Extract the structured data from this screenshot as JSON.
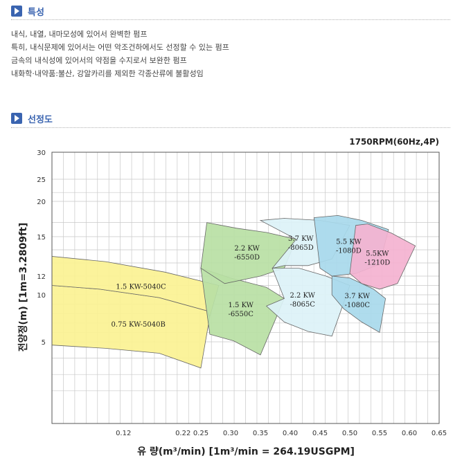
{
  "sections": {
    "features_title": "특성",
    "chart_title": "선정도"
  },
  "features": [
    "내식, 내열, 내마모성에 있어서 완벽한 펌프",
    "특히, 내식문제에 있어서는 어떤 악조건하에서도 선정할 수 있는 펌프",
    "금속의 내식성에 있어서의 약점을 수지로서 보완한 펌프",
    "내화학·내약품:불산, 강알카리를 제외한 각종산류에 불활성임"
  ],
  "colors": {
    "yellow": "#fbf293",
    "green": "#b9dfa4",
    "light_cyan": "#dcf2f7",
    "blue": "#a8d9ec",
    "pink": "#f4b2d0",
    "accent": "#3a64b0"
  },
  "chart_data": {
    "type": "area",
    "title": "1750RPM(60Hz,4P)",
    "xlabel": "유 량(m³/min) [1m³/min = 264.19USGPM]",
    "ylabel": "전양정(m) [1m=3.2809ft]",
    "xlim": [
      0.0,
      0.65
    ],
    "ylim": [
      0,
      30
    ],
    "x_ticks": [
      "0.12",
      "0.22",
      "0.25",
      "0.30",
      "0.35",
      "0.40",
      "0.45",
      "0.50",
      "0.55",
      "0.60",
      "0.65"
    ],
    "y_ticks": [
      "5",
      "10",
      "12",
      "15",
      "20",
      "25",
      "30"
    ],
    "grid": true,
    "regions": [
      {
        "label_lines": [
          "0.75 KW-5040B"
        ],
        "color": "yellow",
        "polygon": [
          [
            0.0,
            4.8
          ],
          [
            0.0,
            11.0
          ],
          [
            0.08,
            10.6
          ],
          [
            0.18,
            9.7
          ],
          [
            0.26,
            8.3
          ],
          [
            0.265,
            7.7
          ],
          [
            0.25,
            3.4
          ],
          [
            0.18,
            4.3
          ],
          [
            0.09,
            4.6
          ]
        ]
      },
      {
        "label_lines": [
          "1.5 KW-5040C"
        ],
        "color": "yellow",
        "polygon": [
          [
            0.0,
            11.0
          ],
          [
            0.0,
            13.5
          ],
          [
            0.09,
            13.1
          ],
          [
            0.19,
            12.3
          ],
          [
            0.28,
            11.0
          ],
          [
            0.265,
            7.7
          ],
          [
            0.26,
            8.3
          ],
          [
            0.18,
            9.7
          ],
          [
            0.08,
            10.6
          ]
        ]
      },
      {
        "label_lines": [
          "1.5 KW",
          "-6550C"
        ],
        "color": "green",
        "polygon": [
          [
            0.25,
            12.6
          ],
          [
            0.3,
            11.8
          ],
          [
            0.36,
            10.8
          ],
          [
            0.39,
            9.6
          ],
          [
            0.35,
            4.2
          ],
          [
            0.305,
            5.1
          ],
          [
            0.265,
            5.8
          ]
        ]
      },
      {
        "label_lines": [
          "2.2 KW",
          "-6550D"
        ],
        "color": "green",
        "polygon": [
          [
            0.26,
            17.0
          ],
          [
            0.31,
            16.2
          ],
          [
            0.36,
            15.6
          ],
          [
            0.41,
            14.8
          ],
          [
            0.39,
            12.6
          ],
          [
            0.35,
            12.0
          ],
          [
            0.29,
            11.2
          ],
          [
            0.25,
            12.6
          ]
        ]
      },
      {
        "label_lines": [
          "2.2 KW",
          "-8065C"
        ],
        "color": "light_cyan",
        "polygon": [
          [
            0.37,
            12.6
          ],
          [
            0.415,
            12.6
          ],
          [
            0.46,
            12.0
          ],
          [
            0.5,
            11.0
          ],
          [
            0.47,
            5.6
          ],
          [
            0.43,
            6.1
          ],
          [
            0.39,
            7.1
          ],
          [
            0.36,
            8.8
          ],
          [
            0.39,
            9.6
          ]
        ]
      },
      {
        "label_lines": [
          "3.7 KW",
          "-8065D"
        ],
        "color": "light_cyan",
        "polygon": [
          [
            0.35,
            17.3
          ],
          [
            0.39,
            17.6
          ],
          [
            0.45,
            17.3
          ],
          [
            0.5,
            16.6
          ],
          [
            0.47,
            13.3
          ],
          [
            0.43,
            12.8
          ],
          [
            0.39,
            12.8
          ],
          [
            0.37,
            12.6
          ],
          [
            0.41,
            14.8
          ]
        ]
      },
      {
        "label_lines": [
          "3.7 KW",
          "-1080C"
        ],
        "color": "blue",
        "polygon": [
          [
            0.47,
            12.0
          ],
          [
            0.5,
            11.8
          ],
          [
            0.54,
            10.6
          ],
          [
            0.56,
            9.6
          ],
          [
            0.55,
            6.0
          ],
          [
            0.52,
            7.1
          ],
          [
            0.49,
            8.5
          ],
          [
            0.47,
            10.0
          ]
        ]
      },
      {
        "label_lines": [
          "5.5 KW",
          "-1080D"
        ],
        "color": "blue",
        "polygon": [
          [
            0.44,
            17.7
          ],
          [
            0.48,
            18.0
          ],
          [
            0.52,
            17.3
          ],
          [
            0.565,
            16.0
          ],
          [
            0.55,
            12.9
          ],
          [
            0.51,
            12.2
          ],
          [
            0.47,
            12.0
          ],
          [
            0.45,
            12.6
          ]
        ]
      },
      {
        "label_lines": [
          "5.5KW",
          "-1210D"
        ],
        "color": "pink",
        "polygon": [
          [
            0.51,
            16.6
          ],
          [
            0.53,
            16.8
          ],
          [
            0.57,
            15.5
          ],
          [
            0.61,
            14.3
          ],
          [
            0.58,
            11.2
          ],
          [
            0.55,
            10.6
          ],
          [
            0.52,
            11.2
          ],
          [
            0.5,
            12.2
          ]
        ]
      }
    ]
  }
}
